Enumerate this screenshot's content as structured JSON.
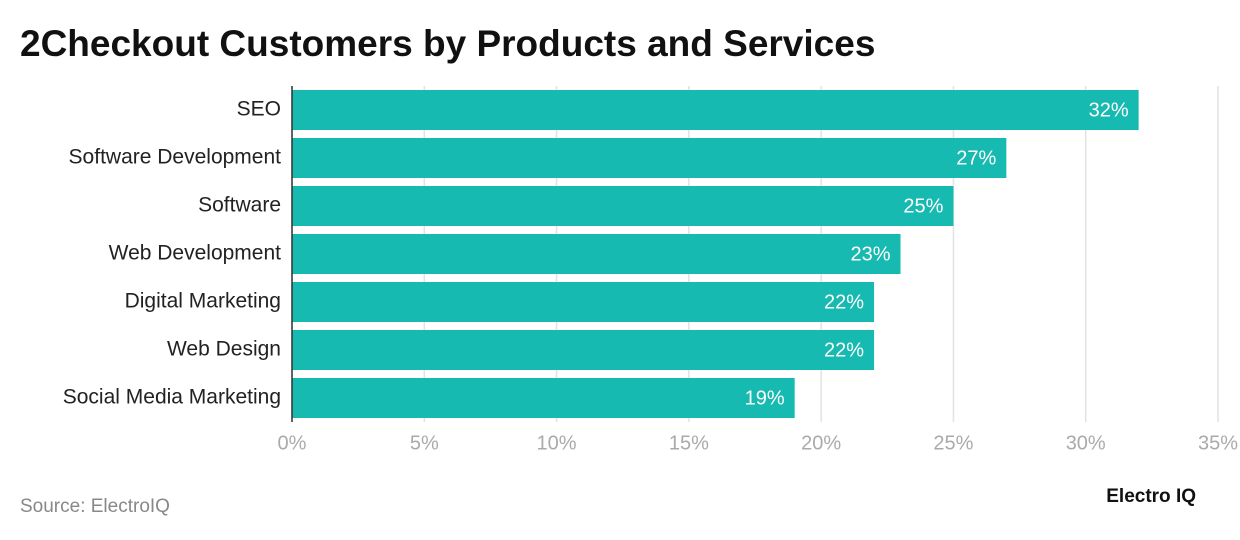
{
  "chart_data": {
    "type": "bar",
    "orientation": "horizontal",
    "title": "2Checkout Customers by Products and Services",
    "categories": [
      "SEO",
      "Software Development",
      "Software",
      "Web Development",
      "Digital Marketing",
      "Web Design",
      "Social Media Marketing"
    ],
    "values": [
      32,
      27,
      25,
      23,
      22,
      22,
      19
    ],
    "value_labels": [
      "32%",
      "27%",
      "25%",
      "23%",
      "22%",
      "22%",
      "19%"
    ],
    "color": "#16bab1",
    "xlim": [
      0,
      35
    ],
    "xticks": [
      {
        "value": 0,
        "label": "0%"
      },
      {
        "value": 5,
        "label": "5%"
      },
      {
        "value": 10,
        "label": "10%"
      },
      {
        "value": 15,
        "label": "15%"
      },
      {
        "value": 20,
        "label": "20%"
      },
      {
        "value": 25,
        "label": "25%"
      },
      {
        "value": 30,
        "label": "30%"
      },
      {
        "value": 35,
        "label": "35%"
      }
    ],
    "grid": true,
    "source": "Source: ElectroIQ",
    "brand": "Electro IQ"
  }
}
